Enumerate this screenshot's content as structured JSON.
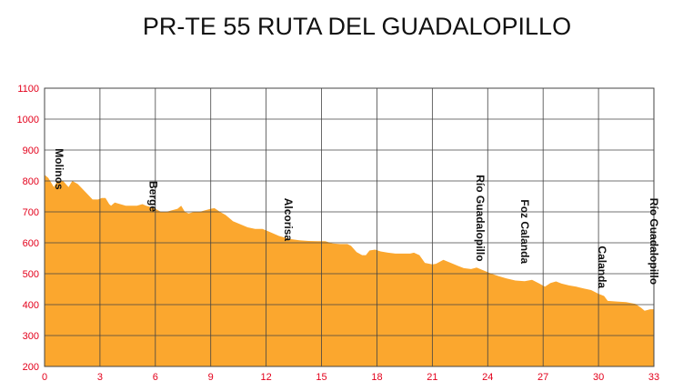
{
  "chart_data": {
    "type": "area",
    "title": "PR-TE 55 RUTA DEL GUADALOPILLO",
    "xlabel": "",
    "ylabel": "",
    "xlim": [
      0,
      33
    ],
    "ylim": [
      200,
      1100
    ],
    "x_ticks": [
      0,
      3,
      6,
      9,
      12,
      15,
      18,
      21,
      24,
      27,
      30,
      33
    ],
    "y_ticks": [
      200,
      300,
      400,
      500,
      600,
      700,
      800,
      900,
      1000,
      1100
    ],
    "grid": true,
    "fill_color": "#fba72e",
    "tick_color": "#e3001b",
    "series": [
      {
        "x": [
          0,
          0.2,
          0.5,
          0.7,
          1.0,
          1.3,
          1.5,
          1.8,
          2.2,
          2.6,
          2.9,
          3.1,
          3.3,
          3.5,
          3.6,
          3.8,
          4.1,
          4.4,
          4.7,
          5.0,
          5.3,
          5.5,
          5.8,
          6.0,
          6.3,
          6.6,
          6.9,
          7.2,
          7.4,
          7.6,
          7.8,
          8.1,
          8.4,
          8.7,
          9.0,
          9.2,
          9.5,
          9.8,
          10.2,
          10.6,
          11.0,
          11.4,
          11.8,
          12.2,
          12.7,
          13.3,
          13.8,
          14.3,
          14.8,
          15.2,
          15.6,
          16.0,
          16.4,
          16.6,
          16.9,
          17.2,
          17.4,
          17.6,
          17.9,
          18.2,
          18.6,
          19.0,
          19.4,
          19.8,
          20.0,
          20.3,
          20.6,
          21.0,
          21.2,
          21.6,
          22.0,
          22.4,
          22.7,
          23.1,
          23.4,
          23.8,
          24.2,
          24.6,
          25.0,
          25.5,
          26.0,
          26.4,
          26.8,
          27.1,
          27.4,
          27.7,
          28.0,
          28.4,
          28.8,
          29.2,
          29.6,
          30.0,
          30.3,
          30.5,
          31.0,
          31.5,
          32.0,
          32.3,
          32.5,
          32.8,
          33.0,
          33.2
        ],
        "values": [
          820,
          810,
          780,
          800,
          800,
          780,
          800,
          790,
          765,
          740,
          740,
          745,
          745,
          725,
          720,
          730,
          725,
          720,
          720,
          720,
          725,
          720,
          715,
          710,
          700,
          700,
          705,
          710,
          720,
          700,
          695,
          700,
          700,
          705,
          710,
          712,
          700,
          690,
          670,
          660,
          650,
          645,
          645,
          635,
          622,
          612,
          608,
          606,
          605,
          605,
          598,
          596,
          596,
          590,
          570,
          560,
          560,
          575,
          578,
          572,
          568,
          565,
          565,
          565,
          568,
          560,
          535,
          530,
          532,
          545,
          535,
          525,
          518,
          515,
          520,
          510,
          500,
          492,
          485,
          478,
          476,
          480,
          468,
          458,
          470,
          475,
          468,
          462,
          458,
          452,
          447,
          435,
          428,
          412,
          410,
          408,
          402,
          390,
          380,
          385,
          385,
          384
        ]
      }
    ],
    "annotations": [
      {
        "text": "Molinos",
        "x": 0.6,
        "y": 905
      },
      {
        "text": "Berge",
        "x": 5.7,
        "y": 800
      },
      {
        "text": "Alcorisa",
        "x": 13.0,
        "y": 745
      },
      {
        "text": "Río Guadalopillo",
        "x": 23.4,
        "y": 820
      },
      {
        "text": "Foz Calanda",
        "x": 25.8,
        "y": 740
      },
      {
        "text": "Calanda",
        "x": 30.0,
        "y": 590
      },
      {
        "text": "Río Guadalopillo",
        "x": 33.5,
        "y": 745
      }
    ]
  }
}
